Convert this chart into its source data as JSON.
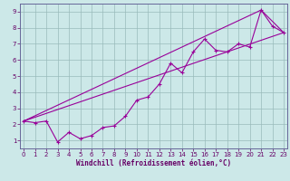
{
  "xlabel": "Windchill (Refroidissement éolien,°C)",
  "bg_color": "#cce8e8",
  "line_color": "#990099",
  "marker": "+",
  "series1": [
    [
      0,
      2.2
    ],
    [
      1,
      2.1
    ],
    [
      2,
      2.2
    ],
    [
      3,
      0.9
    ],
    [
      4,
      1.5
    ],
    [
      5,
      1.1
    ],
    [
      6,
      1.3
    ],
    [
      7,
      1.8
    ],
    [
      8,
      1.9
    ],
    [
      9,
      2.5
    ],
    [
      10,
      3.5
    ],
    [
      11,
      3.7
    ],
    [
      12,
      4.5
    ],
    [
      13,
      5.8
    ],
    [
      14,
      5.2
    ],
    [
      15,
      6.5
    ],
    [
      16,
      7.3
    ],
    [
      17,
      6.6
    ],
    [
      18,
      6.5
    ],
    [
      19,
      7.0
    ],
    [
      20,
      6.8
    ],
    [
      21,
      9.1
    ],
    [
      22,
      8.1
    ],
    [
      23,
      7.7
    ]
  ],
  "envelope": [
    [
      0,
      2.2
    ],
    [
      21,
      9.1
    ],
    [
      23,
      7.7
    ],
    [
      0,
      2.2
    ]
  ],
  "xlim": [
    -0.3,
    23.3
  ],
  "ylim": [
    0.5,
    9.5
  ],
  "xticks": [
    0,
    1,
    2,
    3,
    4,
    5,
    6,
    7,
    8,
    9,
    10,
    11,
    12,
    13,
    14,
    15,
    16,
    17,
    18,
    19,
    20,
    21,
    22,
    23
  ],
  "yticks": [
    1,
    2,
    3,
    4,
    5,
    6,
    7,
    8,
    9
  ],
  "grid_color": "#99bbbb",
  "spine_color": "#666699",
  "tick_color": "#660066",
  "xlabel_color": "#660066",
  "tick_fontsize": 5.0,
  "xlabel_fontsize": 5.5
}
